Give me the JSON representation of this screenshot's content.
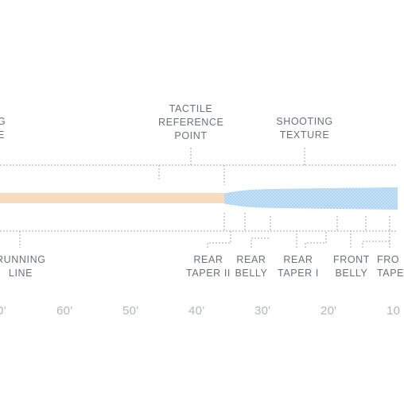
{
  "colors": {
    "running_line": "#f8dcbf",
    "head": "#a9d2f1",
    "head_texture": "#cfe6f9",
    "leader": "#9a9ea3",
    "axis_text": "#b4b7ba"
  },
  "labels_top": {
    "cut_left": [
      "G",
      "E"
    ],
    "tactile": [
      "TACTILE",
      "REFERENCE",
      "POINT"
    ],
    "shooting": [
      "SHOOTING",
      "TEXTURE"
    ]
  },
  "labels_bottom": {
    "running": [
      "RUNNING",
      "LINE"
    ],
    "rear_taper_ii": [
      "REAR",
      "TAPER II"
    ],
    "rear_belly": [
      "REAR",
      "BELLY"
    ],
    "rear_taper_i": [
      "REAR",
      "TAPER I"
    ],
    "front_belly": [
      "FRONT",
      "BELLY"
    ],
    "front_taper": [
      "FRO",
      "TAPE"
    ]
  },
  "scale_ticks": [
    "0'",
    "60'",
    "50'",
    "40'",
    "30'",
    "20'",
    "10"
  ]
}
